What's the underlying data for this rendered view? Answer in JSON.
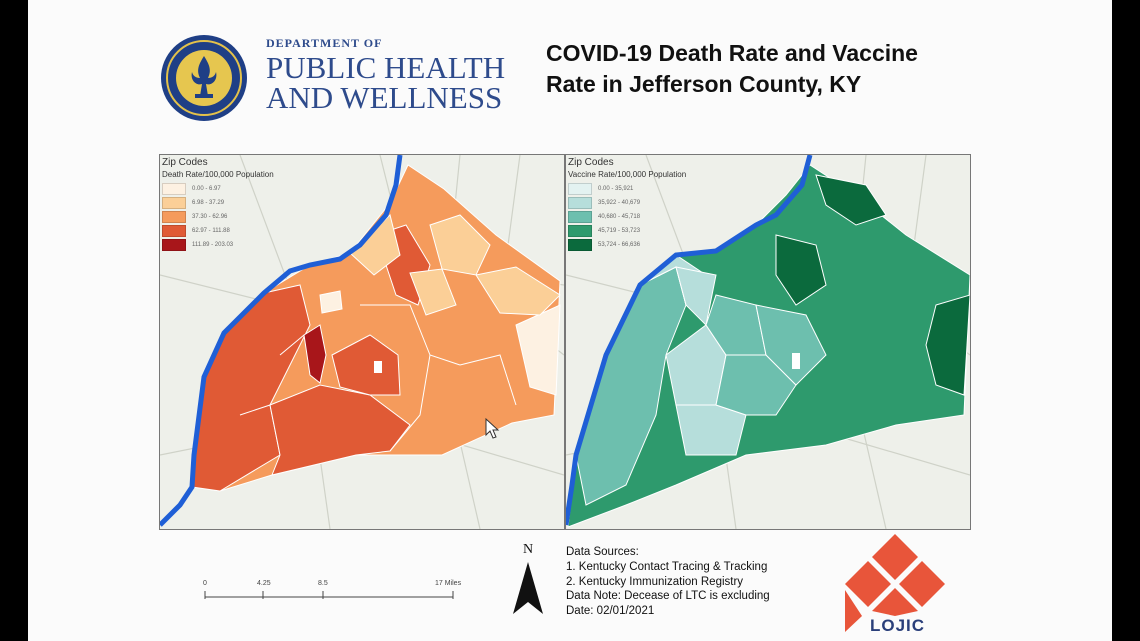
{
  "header": {
    "dept_line1": "DEPARTMENT OF",
    "dept_line2": "PUBLIC HEALTH",
    "dept_line3": "AND WELLNESS",
    "title_line1": "COVID-19 Death Rate and Vaccine",
    "title_line2": "Rate in Jefferson County, KY"
  },
  "left_map": {
    "legend_title": "Zip Codes",
    "legend_subtitle": "Death Rate/100,000 Population",
    "classes": [
      {
        "label": "0.00 - 6.97",
        "color": "#fdf1e2"
      },
      {
        "label": "6.98 - 37.29",
        "color": "#fbcf97"
      },
      {
        "label": "37.30 - 62.96",
        "color": "#f59b5c"
      },
      {
        "label": "62.97 - 111.88",
        "color": "#e05a35"
      },
      {
        "label": "111.89 - 203.03",
        "color": "#a8161a"
      }
    ]
  },
  "right_map": {
    "legend_title": "Zip Codes",
    "legend_subtitle": "Vaccine Rate/100,000 Population",
    "classes": [
      {
        "label": "0.00 - 35,921",
        "color": "#e3f2f1"
      },
      {
        "label": "35,922 - 40,679",
        "color": "#b6dedb"
      },
      {
        "label": "40,680 - 45,718",
        "color": "#6dbfae"
      },
      {
        "label": "45,719 - 53,723",
        "color": "#2e9a6d"
      },
      {
        "label": "53,724 - 66,636",
        "color": "#0b6a3d"
      }
    ]
  },
  "scale_bar": {
    "ticks": [
      "0",
      "4.25",
      "8.5",
      "17 Miles"
    ]
  },
  "north_label": "N",
  "data_sources": {
    "line1": "Data Sources:",
    "line2": "1. Kentucky Contact Tracing & Tracking",
    "line3": "2. Kentucky Immunization Registry",
    "line4": "Data Note: Decease of LTC is excluding",
    "line5": "Date: 02/01/2021"
  },
  "lojic_label": "LOJIC",
  "colors": {
    "river": "#1f5fd6",
    "header_blue": "#2e4b8c",
    "lojic_red": "#e8553a"
  }
}
